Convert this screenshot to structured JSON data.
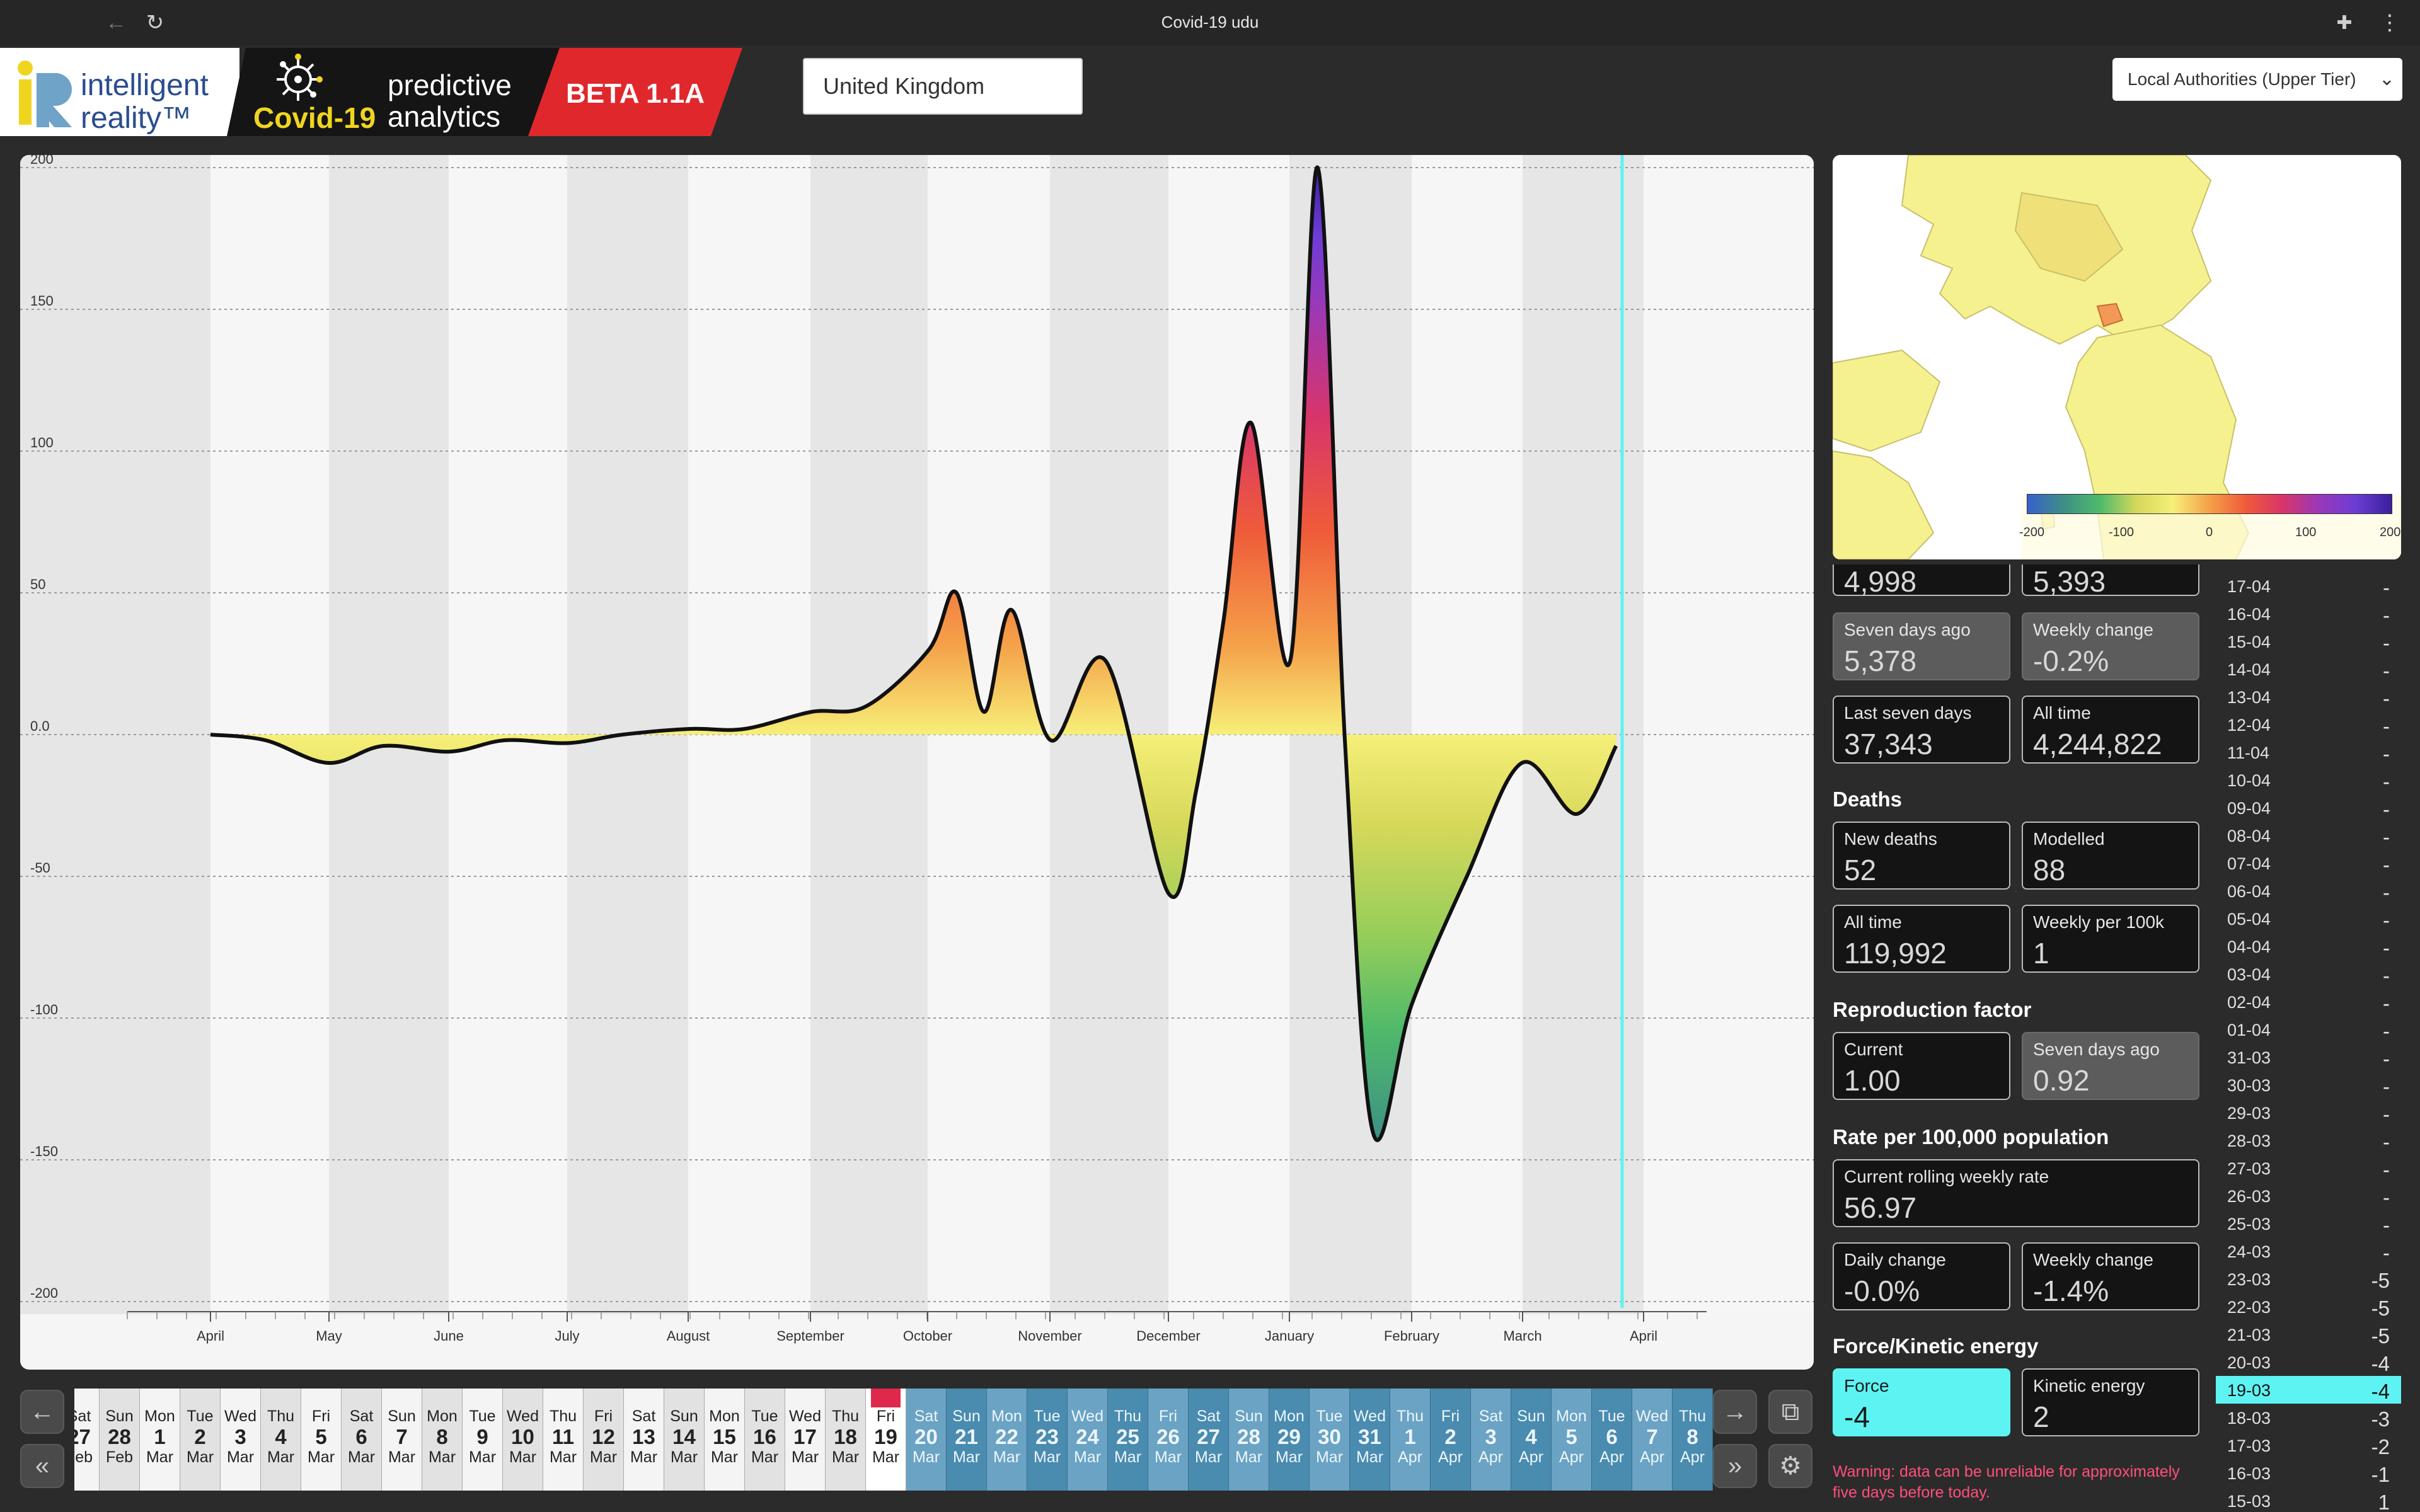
{
  "window": {
    "title": "Covid-19 udu"
  },
  "header": {
    "logo_line1": "intelligent",
    "logo_line2": "reality™",
    "covid_label": "Covid-19",
    "predictive_line1": "predictive",
    "predictive_line2": "analytics",
    "beta_label": "BETA 1.1A",
    "search_value": "United Kingdom",
    "level_select": "Local Authorities (Upper Tier)"
  },
  "chart_data": {
    "type": "area",
    "title": "",
    "xlabel": "",
    "ylabel": "",
    "ylim": [
      -200,
      200
    ],
    "yticks": [
      "200",
      "150",
      "100",
      "50",
      "0.0",
      "-50",
      "-100",
      "-150",
      "-200"
    ],
    "xticks": [
      "April",
      "May",
      "June",
      "July",
      "August",
      "September",
      "October",
      "November",
      "December",
      "January",
      "February",
      "March",
      "April"
    ],
    "x_dates": [
      "2020-04-01",
      "2020-04-15",
      "2020-05-01",
      "2020-05-15",
      "2020-06-01",
      "2020-06-15",
      "2020-07-01",
      "2020-07-15",
      "2020-08-01",
      "2020-08-15",
      "2020-09-01",
      "2020-09-15",
      "2020-10-01",
      "2020-10-08",
      "2020-10-15",
      "2020-10-22",
      "2020-11-01",
      "2020-11-15",
      "2020-12-01",
      "2020-12-08",
      "2020-12-15",
      "2020-12-22",
      "2021-01-01",
      "2021-01-08",
      "2021-01-15",
      "2021-01-22",
      "2021-02-01",
      "2021-02-15",
      "2021-03-01",
      "2021-03-15",
      "2021-03-25"
    ],
    "values": [
      0,
      -2,
      -10,
      -4,
      -6,
      -2,
      -3,
      0,
      2,
      2,
      8,
      10,
      30,
      50,
      8,
      44,
      -2,
      26,
      -56,
      -20,
      40,
      110,
      26,
      200,
      -4,
      -140,
      -95,
      -50,
      -10,
      -28,
      -4
    ],
    "today_marker": "April",
    "color_scale": {
      "min_color": "#3a5fcd",
      "zero_color": "#f4ef7a",
      "max_color": "#4b1fa6"
    }
  },
  "map": {
    "legend_ticks": [
      "-200",
      "-100",
      "0",
      "100",
      "200"
    ]
  },
  "stats": {
    "partial_row": {
      "left": "4,998",
      "right": "5,393"
    },
    "cases": {
      "seven_days_ago": {
        "label": "Seven days ago",
        "value": "5,378"
      },
      "weekly_change": {
        "label": "Weekly change",
        "value": "-0.2%"
      },
      "last_seven_days": {
        "label": "Last seven days",
        "value": "37,343"
      },
      "all_time": {
        "label": "All time",
        "value": "4,244,822"
      }
    },
    "deaths": {
      "heading": "Deaths",
      "new_deaths": {
        "label": "New deaths",
        "value": "52"
      },
      "modelled": {
        "label": "Modelled",
        "value": "88"
      },
      "all_time": {
        "label": "All time",
        "value": "119,992"
      },
      "weekly_per_100k": {
        "label": "Weekly per 100k",
        "value": "1"
      }
    },
    "reproduction": {
      "heading": "Reproduction factor",
      "current": {
        "label": "Current",
        "value": "1.00"
      },
      "seven_days_ago": {
        "label": "Seven days ago",
        "value": "0.92"
      }
    },
    "rate": {
      "heading": "Rate per 100,000 population",
      "rolling": {
        "label": "Current rolling weekly rate",
        "value": "56.97"
      },
      "daily_change": {
        "label": "Daily change",
        "value": "-0.0%"
      },
      "weekly_change": {
        "label": "Weekly change",
        "value": "-1.4%"
      }
    },
    "force": {
      "heading": "Force/Kinetic energy",
      "force": {
        "label": "Force",
        "value": "-4"
      },
      "kinetic": {
        "label": "Kinetic energy",
        "value": "2"
      }
    },
    "warning": "Warning: data can be unreliable for approximately five days before today."
  },
  "right_list": [
    {
      "date": "17-04",
      "value": "-"
    },
    {
      "date": "16-04",
      "value": "-"
    },
    {
      "date": "15-04",
      "value": "-"
    },
    {
      "date": "14-04",
      "value": "-"
    },
    {
      "date": "13-04",
      "value": "-"
    },
    {
      "date": "12-04",
      "value": "-"
    },
    {
      "date": "11-04",
      "value": "-"
    },
    {
      "date": "10-04",
      "value": "-"
    },
    {
      "date": "09-04",
      "value": "-"
    },
    {
      "date": "08-04",
      "value": "-"
    },
    {
      "date": "07-04",
      "value": "-"
    },
    {
      "date": "06-04",
      "value": "-"
    },
    {
      "date": "05-04",
      "value": "-"
    },
    {
      "date": "04-04",
      "value": "-"
    },
    {
      "date": "03-04",
      "value": "-"
    },
    {
      "date": "02-04",
      "value": "-"
    },
    {
      "date": "01-04",
      "value": "-"
    },
    {
      "date": "31-03",
      "value": "-"
    },
    {
      "date": "30-03",
      "value": "-"
    },
    {
      "date": "29-03",
      "value": "-"
    },
    {
      "date": "28-03",
      "value": "-"
    },
    {
      "date": "27-03",
      "value": "-"
    },
    {
      "date": "26-03",
      "value": "-"
    },
    {
      "date": "25-03",
      "value": "-"
    },
    {
      "date": "24-03",
      "value": "-"
    },
    {
      "date": "23-03",
      "value": "-5"
    },
    {
      "date": "22-03",
      "value": "-5"
    },
    {
      "date": "21-03",
      "value": "-5"
    },
    {
      "date": "20-03",
      "value": "-4"
    },
    {
      "date": "19-03",
      "value": "-4",
      "selected": true
    },
    {
      "date": "18-03",
      "value": "-3"
    },
    {
      "date": "17-03",
      "value": "-2"
    },
    {
      "date": "16-03",
      "value": "-1"
    },
    {
      "date": "15-03",
      "value": "1"
    }
  ],
  "timeline": {
    "days": [
      {
        "dn": "Sat",
        "dd": "27",
        "dm": "Feb",
        "kind": "past"
      },
      {
        "dn": "Sun",
        "dd": "28",
        "dm": "Feb",
        "kind": "past"
      },
      {
        "dn": "Mon",
        "dd": "1",
        "dm": "Mar",
        "kind": "past"
      },
      {
        "dn": "Tue",
        "dd": "2",
        "dm": "Mar",
        "kind": "past"
      },
      {
        "dn": "Wed",
        "dd": "3",
        "dm": "Mar",
        "kind": "past"
      },
      {
        "dn": "Thu",
        "dd": "4",
        "dm": "Mar",
        "kind": "past"
      },
      {
        "dn": "Fri",
        "dd": "5",
        "dm": "Mar",
        "kind": "past"
      },
      {
        "dn": "Sat",
        "dd": "6",
        "dm": "Mar",
        "kind": "past"
      },
      {
        "dn": "Sun",
        "dd": "7",
        "dm": "Mar",
        "kind": "past"
      },
      {
        "dn": "Mon",
        "dd": "8",
        "dm": "Mar",
        "kind": "past"
      },
      {
        "dn": "Tue",
        "dd": "9",
        "dm": "Mar",
        "kind": "past"
      },
      {
        "dn": "Wed",
        "dd": "10",
        "dm": "Mar",
        "kind": "past"
      },
      {
        "dn": "Thu",
        "dd": "11",
        "dm": "Mar",
        "kind": "past"
      },
      {
        "dn": "Fri",
        "dd": "12",
        "dm": "Mar",
        "kind": "past"
      },
      {
        "dn": "Sat",
        "dd": "13",
        "dm": "Mar",
        "kind": "past"
      },
      {
        "dn": "Sun",
        "dd": "14",
        "dm": "Mar",
        "kind": "past"
      },
      {
        "dn": "Mon",
        "dd": "15",
        "dm": "Mar",
        "kind": "past"
      },
      {
        "dn": "Tue",
        "dd": "16",
        "dm": "Mar",
        "kind": "past"
      },
      {
        "dn": "Wed",
        "dd": "17",
        "dm": "Mar",
        "kind": "past"
      },
      {
        "dn": "Thu",
        "dd": "18",
        "dm": "Mar",
        "kind": "past"
      },
      {
        "dn": "Fri",
        "dd": "19",
        "dm": "Mar",
        "kind": "today"
      },
      {
        "dn": "Sat",
        "dd": "20",
        "dm": "Mar",
        "kind": "future"
      },
      {
        "dn": "Sun",
        "dd": "21",
        "dm": "Mar",
        "kind": "future"
      },
      {
        "dn": "Mon",
        "dd": "22",
        "dm": "Mar",
        "kind": "future"
      },
      {
        "dn": "Tue",
        "dd": "23",
        "dm": "Mar",
        "kind": "future"
      },
      {
        "dn": "Wed",
        "dd": "24",
        "dm": "Mar",
        "kind": "future"
      },
      {
        "dn": "Thu",
        "dd": "25",
        "dm": "Mar",
        "kind": "future"
      },
      {
        "dn": "Fri",
        "dd": "26",
        "dm": "Mar",
        "kind": "future"
      },
      {
        "dn": "Sat",
        "dd": "27",
        "dm": "Mar",
        "kind": "future"
      },
      {
        "dn": "Sun",
        "dd": "28",
        "dm": "Mar",
        "kind": "future"
      },
      {
        "dn": "Mon",
        "dd": "29",
        "dm": "Mar",
        "kind": "future"
      },
      {
        "dn": "Tue",
        "dd": "30",
        "dm": "Mar",
        "kind": "future"
      },
      {
        "dn": "Wed",
        "dd": "31",
        "dm": "Mar",
        "kind": "future"
      },
      {
        "dn": "Thu",
        "dd": "1",
        "dm": "Apr",
        "kind": "future"
      },
      {
        "dn": "Fri",
        "dd": "2",
        "dm": "Apr",
        "kind": "future"
      },
      {
        "dn": "Sat",
        "dd": "3",
        "dm": "Apr",
        "kind": "future"
      },
      {
        "dn": "Sun",
        "dd": "4",
        "dm": "Apr",
        "kind": "future"
      },
      {
        "dn": "Mon",
        "dd": "5",
        "dm": "Apr",
        "kind": "future"
      },
      {
        "dn": "Tue",
        "dd": "6",
        "dm": "Apr",
        "kind": "future"
      },
      {
        "dn": "Wed",
        "dd": "7",
        "dm": "Apr",
        "kind": "future"
      },
      {
        "dn": "Thu",
        "dd": "8",
        "dm": "Apr",
        "kind": "future"
      }
    ]
  }
}
